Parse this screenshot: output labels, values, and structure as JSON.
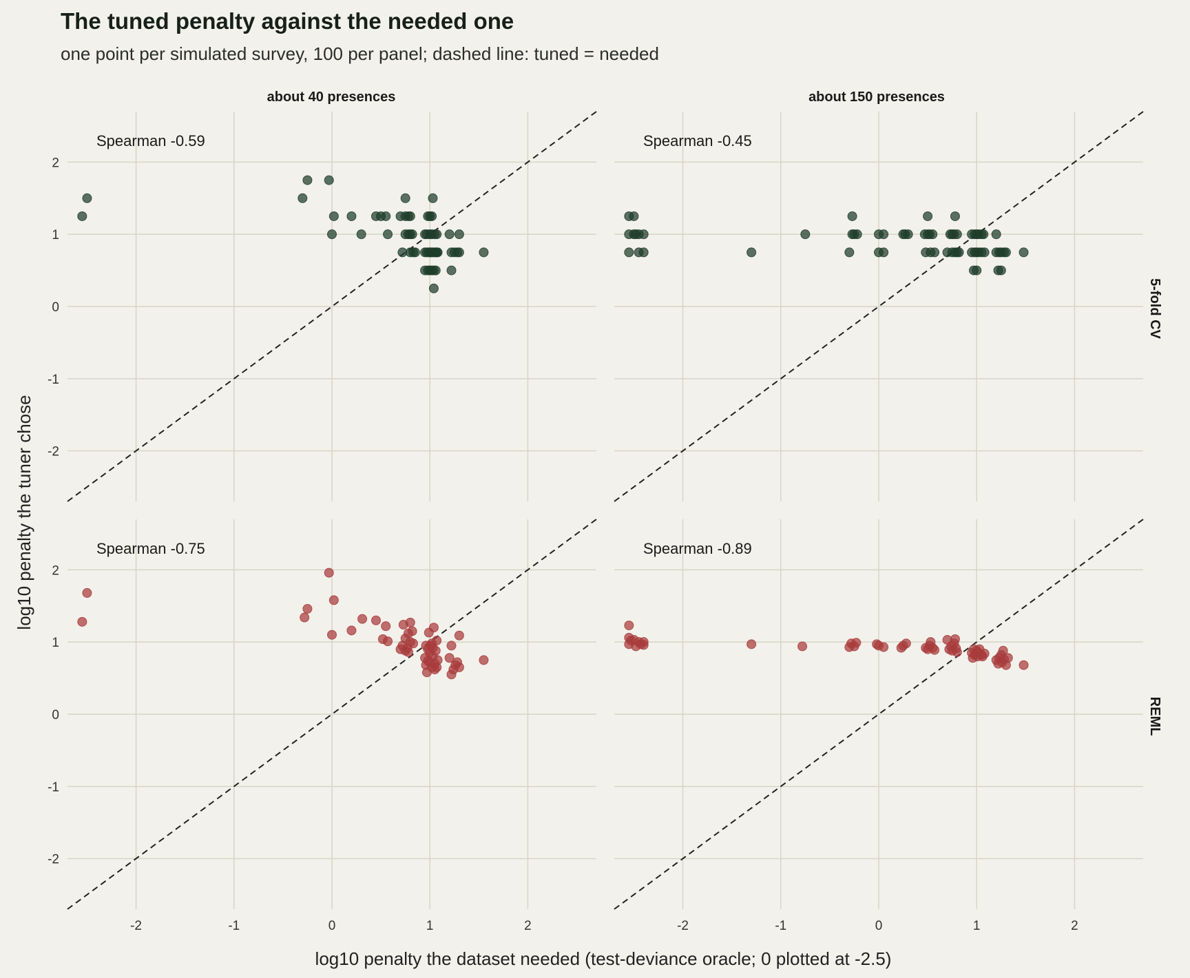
{
  "title": "The tuned penalty against the needed one",
  "subtitle": "one point per simulated survey, 100 per panel; dashed line: tuned = needed",
  "colors": {
    "background": "#f3f1eb",
    "grid": "#d6d5c7",
    "cv_point": "#1f3d2a",
    "reml_point": "#a83b3b",
    "diagonal": "#222222"
  },
  "chart_data": {
    "type": "scatter",
    "xlabel": "log10 penalty the dataset needed (test-deviance oracle; 0 plotted at -2.5)",
    "ylabel": "log10 penalty the tuner chose",
    "xlim": [
      -2.7,
      2.7
    ],
    "ylim": [
      -2.7,
      2.7
    ],
    "x_ticks": [
      -2,
      -1,
      0,
      1,
      2
    ],
    "y_ticks": [
      -2,
      -1,
      0,
      1,
      2
    ],
    "tick_labels": [
      "-2",
      "-1",
      "0",
      "1",
      "2"
    ],
    "grid": true,
    "reference_line": "tuned = needed",
    "column_labels": [
      "about 40 presences",
      "about 150 presences"
    ],
    "row_labels": [
      "5-fold CV",
      "REML"
    ],
    "panels": [
      {
        "column": "about 40 presences",
        "row": "5-fold CV",
        "annotation": "Spearman -0.59",
        "points": [
          [
            -2.55,
            1.25
          ],
          [
            -2.5,
            1.5
          ],
          [
            -0.3,
            1.5
          ],
          [
            -0.25,
            1.75
          ],
          [
            -0.03,
            1.75
          ],
          [
            0.02,
            1.25
          ],
          [
            0.0,
            1.0
          ],
          [
            0.2,
            1.25
          ],
          [
            0.3,
            1.0
          ],
          [
            0.45,
            1.25
          ],
          [
            0.5,
            1.25
          ],
          [
            0.55,
            1.25
          ],
          [
            0.57,
            1.0
          ],
          [
            0.7,
            1.25
          ],
          [
            0.72,
            0.75
          ],
          [
            0.75,
            1.5
          ],
          [
            0.75,
            1.25
          ],
          [
            0.75,
            1.0
          ],
          [
            0.78,
            1.25
          ],
          [
            0.8,
            1.25
          ],
          [
            0.78,
            1.0
          ],
          [
            0.8,
            1.0
          ],
          [
            0.82,
            1.0
          ],
          [
            0.8,
            0.75
          ],
          [
            0.83,
            0.75
          ],
          [
            0.85,
            0.75
          ],
          [
            0.95,
            1.0
          ],
          [
            0.97,
            1.0
          ],
          [
            0.98,
            1.25
          ],
          [
            1.0,
            1.25
          ],
          [
            1.02,
            1.25
          ],
          [
            1.0,
            1.0
          ],
          [
            1.02,
            1.0
          ],
          [
            1.05,
            1.0
          ],
          [
            1.03,
            1.5
          ],
          [
            1.07,
            1.0
          ],
          [
            0.95,
            0.75
          ],
          [
            0.97,
            0.75
          ],
          [
            0.99,
            0.75
          ],
          [
            1.0,
            0.75
          ],
          [
            1.01,
            0.75
          ],
          [
            1.02,
            0.75
          ],
          [
            1.03,
            0.75
          ],
          [
            1.05,
            0.75
          ],
          [
            1.06,
            0.75
          ],
          [
            1.07,
            0.75
          ],
          [
            1.08,
            0.75
          ],
          [
            0.95,
            0.5
          ],
          [
            0.98,
            0.5
          ],
          [
            1.0,
            0.5
          ],
          [
            1.02,
            0.5
          ],
          [
            1.04,
            0.5
          ],
          [
            1.06,
            0.5
          ],
          [
            1.04,
            0.25
          ],
          [
            1.2,
            1.0
          ],
          [
            1.22,
            0.75
          ],
          [
            1.25,
            0.75
          ],
          [
            1.28,
            0.75
          ],
          [
            1.3,
            1.0
          ],
          [
            1.3,
            0.75
          ],
          [
            1.22,
            0.5
          ],
          [
            1.55,
            0.75
          ]
        ]
      },
      {
        "column": "about 150 presences",
        "row": "5-fold CV",
        "annotation": "Spearman -0.45",
        "points": [
          [
            -2.55,
            1.25
          ],
          [
            -2.55,
            1.0
          ],
          [
            -2.55,
            0.75
          ],
          [
            -2.5,
            1.25
          ],
          [
            -2.5,
            1.0
          ],
          [
            -2.48,
            1.0
          ],
          [
            -2.45,
            1.0
          ],
          [
            -2.45,
            0.75
          ],
          [
            -2.4,
            1.0
          ],
          [
            -2.4,
            0.75
          ],
          [
            -1.3,
            0.75
          ],
          [
            -0.75,
            1.0
          ],
          [
            -0.3,
            0.75
          ],
          [
            -0.27,
            1.0
          ],
          [
            -0.27,
            1.25
          ],
          [
            -0.25,
            1.0
          ],
          [
            -0.22,
            1.0
          ],
          [
            0.0,
            1.0
          ],
          [
            0.0,
            0.75
          ],
          [
            0.05,
            1.0
          ],
          [
            0.05,
            0.75
          ],
          [
            0.25,
            1.0
          ],
          [
            0.27,
            1.0
          ],
          [
            0.3,
            1.0
          ],
          [
            0.47,
            1.0
          ],
          [
            0.5,
            1.25
          ],
          [
            0.5,
            1.0
          ],
          [
            0.52,
            1.0
          ],
          [
            0.55,
            1.0
          ],
          [
            0.48,
            0.75
          ],
          [
            0.53,
            0.75
          ],
          [
            0.57,
            0.75
          ],
          [
            0.7,
            0.75
          ],
          [
            0.73,
            1.0
          ],
          [
            0.75,
            1.0
          ],
          [
            0.77,
            1.0
          ],
          [
            0.78,
            1.25
          ],
          [
            0.8,
            1.0
          ],
          [
            0.75,
            0.75
          ],
          [
            0.78,
            0.75
          ],
          [
            0.8,
            0.75
          ],
          [
            0.82,
            0.75
          ],
          [
            0.95,
            1.0
          ],
          [
            0.98,
            1.0
          ],
          [
            1.0,
            1.0
          ],
          [
            1.02,
            1.0
          ],
          [
            1.05,
            1.0
          ],
          [
            1.07,
            1.0
          ],
          [
            0.95,
            0.75
          ],
          [
            0.98,
            0.75
          ],
          [
            1.0,
            0.75
          ],
          [
            1.02,
            0.75
          ],
          [
            1.05,
            0.75
          ],
          [
            1.08,
            0.75
          ],
          [
            0.97,
            0.5
          ],
          [
            1.0,
            0.5
          ],
          [
            1.2,
            1.0
          ],
          [
            1.2,
            0.75
          ],
          [
            1.23,
            0.75
          ],
          [
            1.25,
            0.75
          ],
          [
            1.28,
            0.75
          ],
          [
            1.3,
            0.75
          ],
          [
            1.22,
            0.5
          ],
          [
            1.25,
            0.5
          ],
          [
            1.48,
            0.75
          ]
        ]
      },
      {
        "column": "about 40 presences",
        "row": "REML",
        "annotation": "Spearman -0.75",
        "points": [
          [
            -2.55,
            1.28
          ],
          [
            -2.5,
            1.68
          ],
          [
            -0.28,
            1.34
          ],
          [
            -0.25,
            1.46
          ],
          [
            -0.03,
            1.96
          ],
          [
            0.0,
            1.1
          ],
          [
            0.02,
            1.58
          ],
          [
            0.2,
            1.16
          ],
          [
            0.31,
            1.32
          ],
          [
            0.45,
            1.3
          ],
          [
            0.52,
            1.04
          ],
          [
            0.55,
            1.22
          ],
          [
            0.57,
            1.01
          ],
          [
            0.7,
            0.9
          ],
          [
            0.72,
            0.95
          ],
          [
            0.73,
            1.24
          ],
          [
            0.75,
            1.05
          ],
          [
            0.77,
            0.92
          ],
          [
            0.78,
            1.12
          ],
          [
            0.8,
            1.27
          ],
          [
            0.8,
            1.0
          ],
          [
            0.82,
            1.15
          ],
          [
            0.75,
            0.88
          ],
          [
            0.78,
            0.86
          ],
          [
            0.83,
            0.98
          ],
          [
            0.95,
            0.78
          ],
          [
            0.96,
            0.68
          ],
          [
            0.97,
            0.58
          ],
          [
            0.98,
            0.9
          ],
          [
            0.99,
            1.13
          ],
          [
            1.0,
            0.85
          ],
          [
            1.0,
            0.72
          ],
          [
            1.01,
            0.95
          ],
          [
            1.02,
            0.65
          ],
          [
            1.03,
            0.8
          ],
          [
            1.04,
            1.2
          ],
          [
            1.05,
            0.7
          ],
          [
            1.06,
            0.88
          ],
          [
            1.07,
            1.02
          ],
          [
            1.08,
            0.75
          ],
          [
            1.07,
            0.65
          ],
          [
            1.05,
            0.62
          ],
          [
            0.96,
            0.95
          ],
          [
            0.98,
            0.74
          ],
          [
            1.02,
            0.98
          ],
          [
            1.03,
            0.92
          ],
          [
            1.2,
            0.78
          ],
          [
            1.22,
            0.55
          ],
          [
            1.22,
            0.95
          ],
          [
            1.24,
            0.62
          ],
          [
            1.26,
            0.68
          ],
          [
            1.28,
            0.72
          ],
          [
            1.3,
            0.65
          ],
          [
            1.3,
            1.09
          ],
          [
            1.55,
            0.75
          ]
        ]
      },
      {
        "column": "about 150 presences",
        "row": "REML",
        "annotation": "Spearman -0.89",
        "points": [
          [
            -2.55,
            1.23
          ],
          [
            -2.55,
            1.06
          ],
          [
            -2.55,
            0.97
          ],
          [
            -2.53,
            1.02
          ],
          [
            -2.5,
            1.03
          ],
          [
            -2.48,
            0.94
          ],
          [
            -2.45,
            1.0
          ],
          [
            -2.43,
            0.97
          ],
          [
            -2.4,
            1.0
          ],
          [
            -2.4,
            0.96
          ],
          [
            -1.3,
            0.97
          ],
          [
            -0.78,
            0.94
          ],
          [
            -0.3,
            0.93
          ],
          [
            -0.28,
            0.98
          ],
          [
            -0.25,
            0.94
          ],
          [
            -0.23,
            0.99
          ],
          [
            -0.02,
            0.97
          ],
          [
            0.0,
            0.95
          ],
          [
            0.05,
            0.93
          ],
          [
            0.23,
            0.92
          ],
          [
            0.25,
            0.95
          ],
          [
            0.28,
            0.98
          ],
          [
            0.48,
            0.92
          ],
          [
            0.5,
            0.9
          ],
          [
            0.52,
            0.95
          ],
          [
            0.53,
            1.0
          ],
          [
            0.55,
            0.92
          ],
          [
            0.57,
            0.89
          ],
          [
            0.7,
            1.03
          ],
          [
            0.72,
            0.9
          ],
          [
            0.74,
            0.94
          ],
          [
            0.75,
            0.88
          ],
          [
            0.77,
            0.98
          ],
          [
            0.78,
            1.04
          ],
          [
            0.79,
            0.91
          ],
          [
            0.8,
            0.86
          ],
          [
            0.95,
            0.85
          ],
          [
            0.96,
            0.78
          ],
          [
            0.97,
            0.9
          ],
          [
            0.98,
            0.82
          ],
          [
            1.0,
            0.88
          ],
          [
            1.01,
            0.8
          ],
          [
            1.02,
            0.85
          ],
          [
            1.03,
            0.9
          ],
          [
            1.05,
            0.82
          ],
          [
            1.06,
            0.8
          ],
          [
            1.08,
            0.84
          ],
          [
            1.2,
            0.75
          ],
          [
            1.22,
            0.7
          ],
          [
            1.23,
            0.78
          ],
          [
            1.25,
            0.82
          ],
          [
            1.26,
            0.72
          ],
          [
            1.27,
            0.88
          ],
          [
            1.28,
            0.76
          ],
          [
            1.3,
            0.68
          ],
          [
            1.32,
            0.78
          ],
          [
            1.48,
            0.68
          ]
        ]
      }
    ]
  }
}
